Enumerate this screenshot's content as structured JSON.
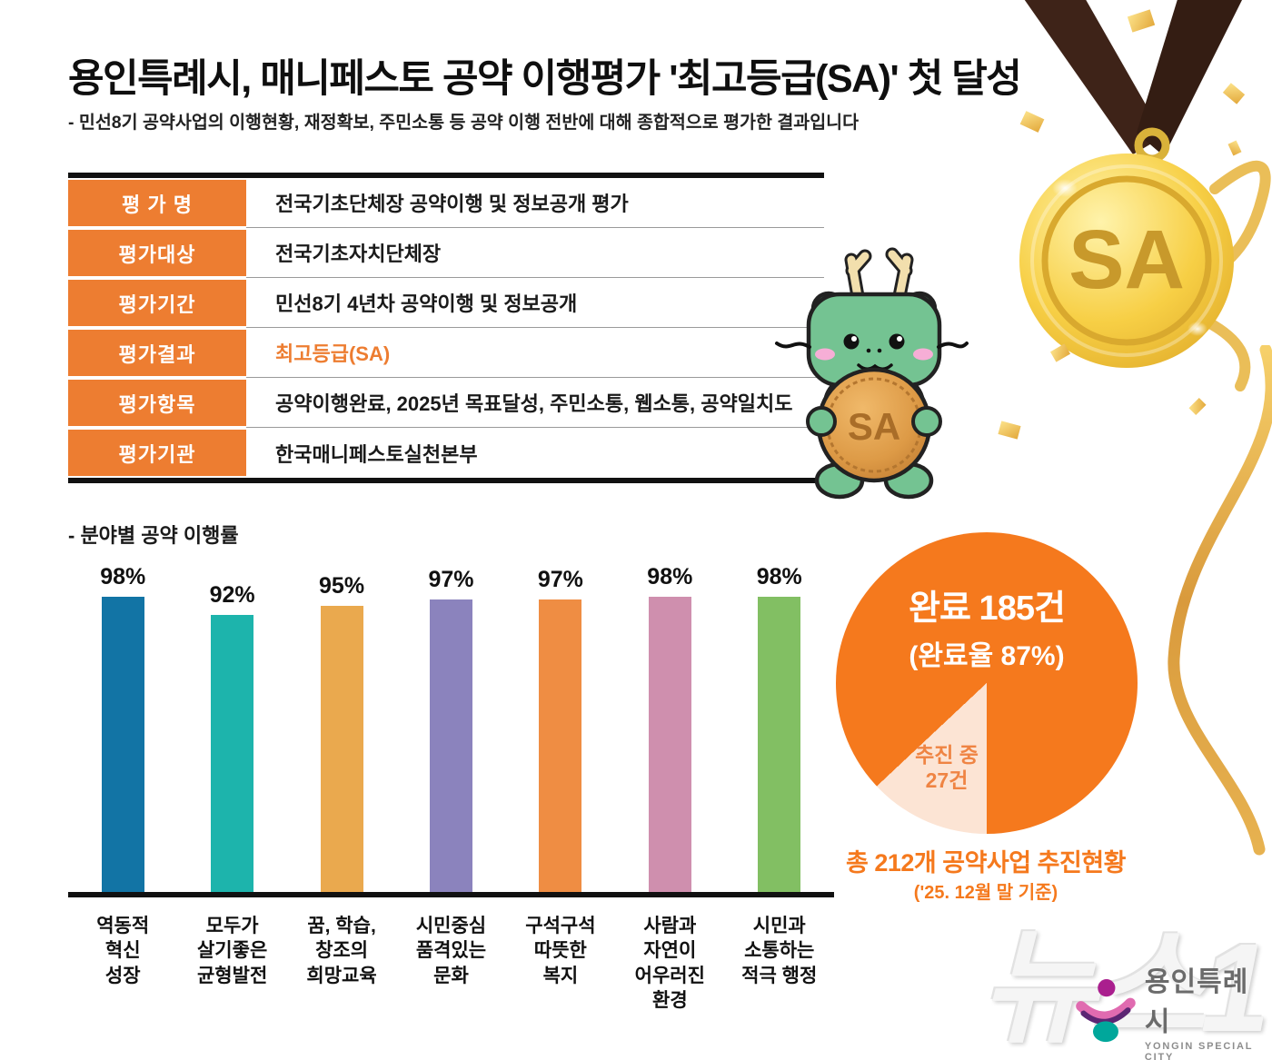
{
  "header": {
    "title": "용인특례시, 매니페스토 공약 이행평가 '최고등급(SA)' 첫 달성",
    "subtitle": "- 민선8기 공약사업의 이행현황, 재정확보, 주민소통 등 공약 이행 전반에 대해 종합적으로 평가한 결과입니다"
  },
  "medal": {
    "label": "SA",
    "gold": "#f7cf45",
    "ribbon_color": "#3e2318"
  },
  "mascot": {
    "coin_label": "SA",
    "body_color": "#74c392"
  },
  "table": {
    "label_bg": "#ed7d31",
    "rows": [
      {
        "label": "평 가 명",
        "value": "전국기초단체장 공약이행 및 정보공개 평가"
      },
      {
        "label": "평가대상",
        "value": "전국기초자치단체장"
      },
      {
        "label": "평가기간",
        "value": "민선8기 4년차 공약이행 및 정보공개"
      },
      {
        "label": "평가결과",
        "value": "최고등급(SA)",
        "highlight": true
      },
      {
        "label": "평가항목",
        "value": "공약이행완료, 2025년 목표달성, 주민소통, 웹소통, 공약일치도"
      },
      {
        "label": "평가기관",
        "value": "한국매니페스토실천본부"
      }
    ]
  },
  "chart_data": [
    {
      "type": "bar",
      "title": "- 분야별 공약 이행률",
      "categories": [
        "역동적\n혁신\n성장",
        "모두가\n살기좋은\n균형발전",
        "꿈, 학습,\n창조의\n희망교육",
        "시민중심\n품격있는\n문화",
        "구석구석\n따뜻한\n복지",
        "사람과\n자연이\n어우러진\n환경",
        "시민과\n소통하는\n적극 행정"
      ],
      "values": [
        98,
        92,
        95,
        97,
        97,
        98,
        98
      ],
      "value_labels": [
        "98%",
        "92%",
        "95%",
        "97%",
        "97%",
        "98%",
        "98%"
      ],
      "colors": [
        "#1274a5",
        "#1db4ac",
        "#eaa94e",
        "#8b83bd",
        "#ef8d43",
        "#cf8fae",
        "#82bf63"
      ],
      "ylim": [
        0,
        100
      ],
      "grid": false,
      "xlabel": "",
      "ylabel": ""
    },
    {
      "type": "pie",
      "total": 212,
      "slices": [
        {
          "name": "완료",
          "value": 185,
          "pct": 87,
          "color": "#f5791d",
          "label_line1": "완료 185건",
          "label_line2": "(완료율 87%)"
        },
        {
          "name": "추진 중",
          "value": 27,
          "pct": 13,
          "color": "#fce4d4",
          "label_line1": "추진 중",
          "label_line2": "27건"
        }
      ],
      "caption": "총 212개 공약사업 추진현황",
      "caption_sub": "('25. 12월 말 기준)",
      "legend_position": "none"
    }
  ],
  "footer": {
    "news_logo": "뉴스1",
    "city_logo": "용인특례시",
    "city_logo_sub": "YONGIN SPECIAL CITY"
  }
}
